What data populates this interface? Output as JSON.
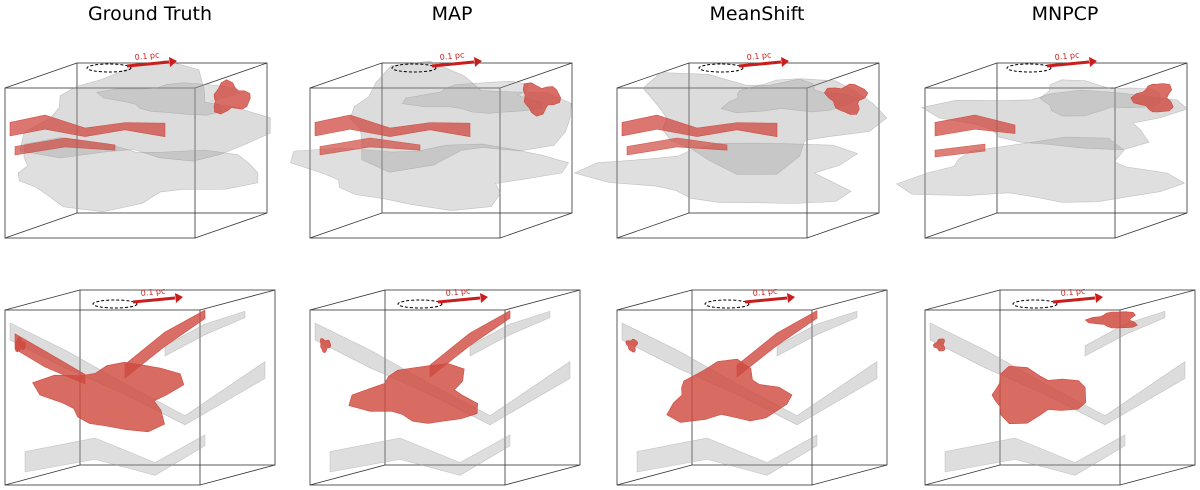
{
  "titles": [
    "Ground Truth",
    "MAP",
    "MeanShift",
    "MNPCP"
  ],
  "scale_label": "0.1 pc",
  "colors": {
    "isosurface_gray": "#9a9a9a",
    "isosurface_red": "#cf4a40",
    "scale_arrow": "#c81e1e",
    "box_edge": "#333333"
  }
}
